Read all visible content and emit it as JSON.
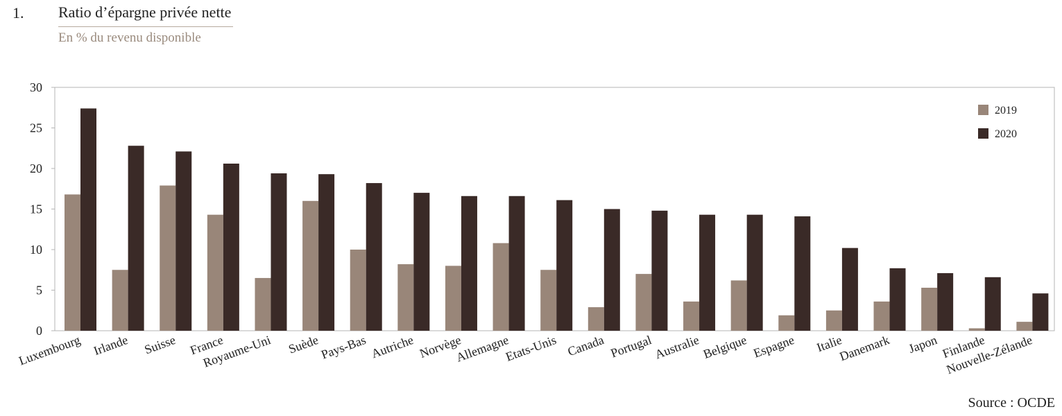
{
  "figure": {
    "number": "1.",
    "title": "Ratio d’épargne privée nette",
    "subtitle": "En % du revenu disponible",
    "source": "Source : OCDE"
  },
  "colors": {
    "series_2019": "#998679",
    "series_2020": "#3a2a27",
    "axis": "#b5b5b5"
  },
  "chart_data": {
    "type": "bar",
    "title": "Ratio d’épargne privée nette",
    "subtitle": "En % du revenu disponible",
    "xlabel": "",
    "ylabel": "",
    "ylim": [
      0,
      30
    ],
    "yticks": [
      0,
      5,
      10,
      15,
      20,
      25,
      30
    ],
    "grid": false,
    "legend_position": "top-right",
    "categories": [
      "Luxembourg",
      "Irlande",
      "Suisse",
      "France",
      "Royaume-Uni",
      "Suède",
      "Pays-Bas",
      "Autriche",
      "Norvège",
      "Allemagne",
      "Etats-Unis",
      "Canada",
      "Portugal",
      "Australie",
      "Belgique",
      "Espagne",
      "Italie",
      "Danemark",
      "Japon",
      "Finlande",
      "Nouvelle-Zélande"
    ],
    "series": [
      {
        "name": "2019",
        "values": [
          16.8,
          7.5,
          17.9,
          14.3,
          6.5,
          16.0,
          10.0,
          8.2,
          8.0,
          10.8,
          7.5,
          2.9,
          7.0,
          3.6,
          6.2,
          1.9,
          2.5,
          3.6,
          5.3,
          0.3,
          1.1
        ]
      },
      {
        "name": "2020",
        "values": [
          27.4,
          22.8,
          22.1,
          20.6,
          19.4,
          19.3,
          18.2,
          17.0,
          16.6,
          16.6,
          16.1,
          15.0,
          14.8,
          14.3,
          14.3,
          14.1,
          10.2,
          7.7,
          7.1,
          6.6,
          4.6
        ]
      }
    ]
  }
}
